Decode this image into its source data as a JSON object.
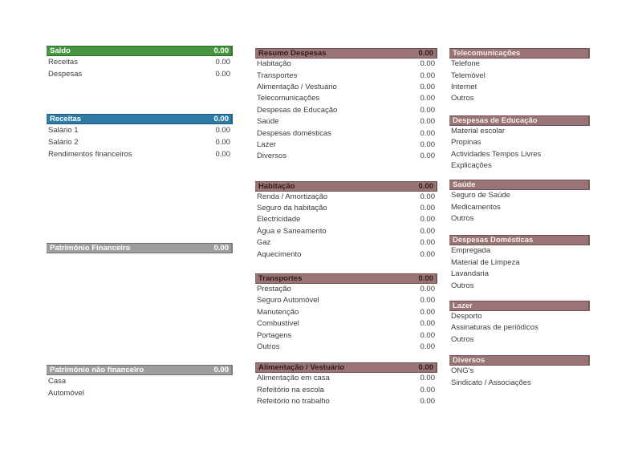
{
  "colors": {
    "green": "#459540",
    "blue": "#2E7CA6",
    "gray": "#9D9D9D",
    "mauve": "#9A7474",
    "mauve_text": "#2E1B1B",
    "row_text": "#3C3C3C"
  },
  "columns": [
    {
      "name": "left",
      "sections": [
        {
          "title": "Saldo",
          "value": "0.00",
          "style": "green",
          "rows": [
            {
              "label": "Receitas",
              "value": "0.00"
            },
            {
              "label": "Despesas",
              "value": "0.00"
            }
          ]
        },
        {
          "title": "Receitas",
          "value": "0.00",
          "style": "blue",
          "rows": [
            {
              "label": "Salário 1",
              "value": "0.00"
            },
            {
              "label": "Salário 2",
              "value": "0.00"
            },
            {
              "label": "Rendimentos financeiros",
              "value": "0.00"
            }
          ]
        },
        {
          "title": "Património Financeiro",
          "value": "0.00",
          "style": "gray",
          "rows": []
        },
        {
          "title": "Património não financeiro",
          "value": "0.00",
          "style": "gray",
          "rows": [
            {
              "label": "Casa"
            },
            {
              "label": "Automóvel"
            }
          ]
        }
      ]
    },
    {
      "name": "middle",
      "sections": [
        {
          "title": "Resumo Despesas",
          "value": "0.00",
          "style": "mauve-dark",
          "rows": [
            {
              "label": "Habitação",
              "value": "0.00"
            },
            {
              "label": "Transportes",
              "value": "0.00"
            },
            {
              "label": "Alimentação / Vestuário",
              "value": "0.00"
            },
            {
              "label": "Telecomunicações",
              "value": "0.00"
            },
            {
              "label": "Despesas de Educação",
              "value": "0.00"
            },
            {
              "label": "Saúde",
              "value": "0.00"
            },
            {
              "label": "Despesas domésticas",
              "value": "0.00"
            },
            {
              "label": "Lazer",
              "value": "0.00"
            },
            {
              "label": "Diversos",
              "value": "0.00"
            }
          ]
        },
        {
          "title": "Habitação",
          "value": "0.00",
          "style": "mauve-dark",
          "rows": [
            {
              "label": "Renda / Amortização",
              "value": "0.00"
            },
            {
              "label": "Seguro da habitação",
              "value": "0.00"
            },
            {
              "label": "Electricidade",
              "value": "0.00"
            },
            {
              "label": "Água e Saneamento",
              "value": "0.00"
            },
            {
              "label": "Gaz",
              "value": "0.00"
            },
            {
              "label": "Aquecimento",
              "value": "0.00"
            }
          ]
        },
        {
          "title": "Transportes",
          "value": "0.00",
          "style": "mauve-dark",
          "rows": [
            {
              "label": "Prestação",
              "value": "0.00"
            },
            {
              "label": "Seguro Automóvel",
              "value": "0.00"
            },
            {
              "label": "Manutenção",
              "value": "0.00"
            },
            {
              "label": "Combustível",
              "value": "0.00"
            },
            {
              "label": "Portagens",
              "value": "0.00"
            },
            {
              "label": "Outros",
              "value": "0.00"
            }
          ]
        },
        {
          "title": "Alimentação / Vestuário",
          "value": "0.00",
          "style": "mauve-dark",
          "rows": [
            {
              "label": "Alimentação em casa",
              "value": "0.00"
            },
            {
              "label": "Refeitório na escola",
              "value": "0.00"
            },
            {
              "label": "Refeitório no trabalho",
              "value": "0.00"
            }
          ]
        }
      ]
    },
    {
      "name": "right",
      "sections": [
        {
          "title": "Telecomunicações",
          "style": "mauve-light",
          "rows": [
            {
              "label": "Telefone"
            },
            {
              "label": "Telemóvel"
            },
            {
              "label": "Internet"
            },
            {
              "label": "Outros"
            }
          ]
        },
        {
          "title": "Despesas de Educação",
          "style": "mauve-light",
          "rows": [
            {
              "label": "Material escolar"
            },
            {
              "label": "Propinas"
            },
            {
              "label": "Actividades Tempos Livres"
            },
            {
              "label": "Explicações"
            }
          ]
        },
        {
          "title": "Saúde",
          "style": "mauve-light",
          "rows": [
            {
              "label": "Seguro de Saúde"
            },
            {
              "label": "Medicamentos"
            },
            {
              "label": "Outros"
            }
          ]
        },
        {
          "title": "Despesas Domésticas",
          "style": "mauve-light",
          "rows": [
            {
              "label": "Empregada"
            },
            {
              "label": "Material de Limpeza"
            },
            {
              "label": "Lavandaria"
            },
            {
              "label": "Outros"
            }
          ]
        },
        {
          "title": "Lazer",
          "style": "mauve-light",
          "rows": [
            {
              "label": "Desporto"
            },
            {
              "label": "Assinaturas de periódicos"
            },
            {
              "label": "Outros"
            }
          ]
        },
        {
          "title": "Diversos",
          "style": "mauve-light",
          "rows": [
            {
              "label": "ONG's"
            },
            {
              "label": "Sindicato / Associações"
            }
          ]
        }
      ]
    }
  ]
}
